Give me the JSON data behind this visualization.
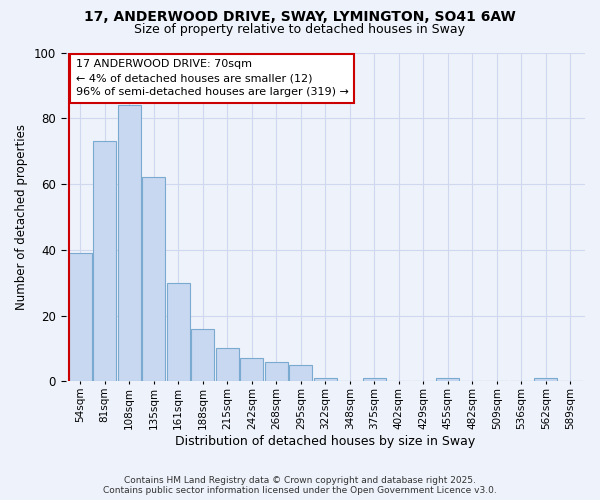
{
  "title": "17, ANDERWOOD DRIVE, SWAY, LYMINGTON, SO41 6AW",
  "subtitle": "Size of property relative to detached houses in Sway",
  "xlabel": "Distribution of detached houses by size in Sway",
  "ylabel": "Number of detached properties",
  "categories": [
    "54sqm",
    "81sqm",
    "108sqm",
    "135sqm",
    "161sqm",
    "188sqm",
    "215sqm",
    "242sqm",
    "268sqm",
    "295sqm",
    "322sqm",
    "348sqm",
    "375sqm",
    "402sqm",
    "429sqm",
    "455sqm",
    "482sqm",
    "509sqm",
    "536sqm",
    "562sqm",
    "589sqm"
  ],
  "values": [
    39,
    73,
    84,
    62,
    30,
    16,
    10,
    7,
    6,
    5,
    1,
    0,
    1,
    0,
    0,
    1,
    0,
    0,
    0,
    1,
    0
  ],
  "bar_color": "#c8d8f0",
  "bar_edge_color": "#7aaad0",
  "highlight_line_color": "#cc0000",
  "annotation_line1": "17 ANDERWOOD DRIVE: 70sqm",
  "annotation_line2": "← 4% of detached houses are smaller (12)",
  "annotation_line3": "96% of semi-detached houses are larger (319) →",
  "annotation_box_color": "#ffffff",
  "annotation_box_edge_color": "#cc0000",
  "ylim": [
    0,
    100
  ],
  "yticks": [
    0,
    20,
    40,
    60,
    80,
    100
  ],
  "bg_color": "#eef2fa",
  "grid_color": "#d0d8f0",
  "footer_line1": "Contains HM Land Registry data © Crown copyright and database right 2025.",
  "footer_line2": "Contains public sector information licensed under the Open Government Licence v3.0."
}
